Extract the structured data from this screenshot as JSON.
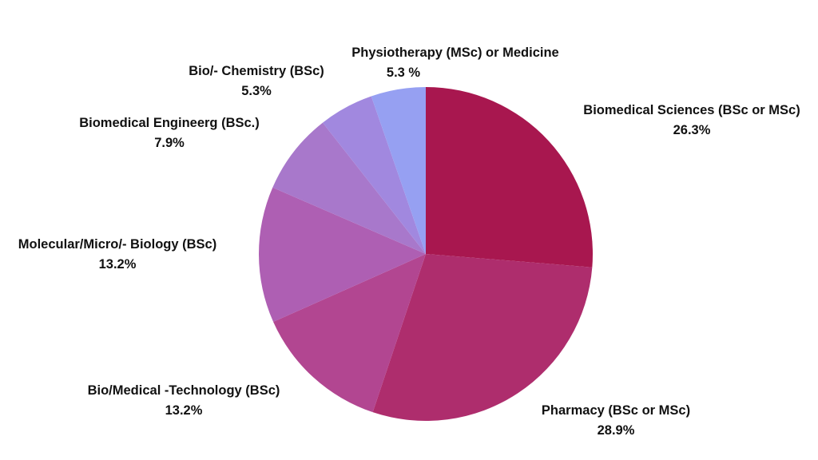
{
  "chart_data": {
    "type": "pie",
    "start_angle_deg": -90,
    "direction": "clockwise",
    "slices": [
      {
        "label": "Biomedical Sciences (BSc or MSc)",
        "value_text": "26.3%",
        "value": 26.3,
        "color": "#A8174F"
      },
      {
        "label": "Pharmacy (BSc or MSc)",
        "value_text": "28.9%",
        "value": 28.9,
        "color": "#AE2D6D"
      },
      {
        "label": "Bio/Medical -Technology (BSc)",
        "value_text": "13.2%",
        "value": 13.2,
        "color": "#B24691"
      },
      {
        "label": "Molecular/Micro/- Biology (BSc)",
        "value_text": "13.2%",
        "value": 13.2,
        "color": "#AE5FB3"
      },
      {
        "label": "Biomedical Engineerg (BSc.)",
        "value_text": "7.9%",
        "value": 7.9,
        "color": "#A878CB"
      },
      {
        "label": "Bio/- Chemistry (BSc)",
        "value_text": "5.3%",
        "value": 5.3,
        "color": "#A188DF"
      },
      {
        "label": "Physiotherapy (MSc) or Medicine",
        "value_text": "5.3 %",
        "value": 5.3,
        "color": "#96A0F2"
      }
    ]
  }
}
